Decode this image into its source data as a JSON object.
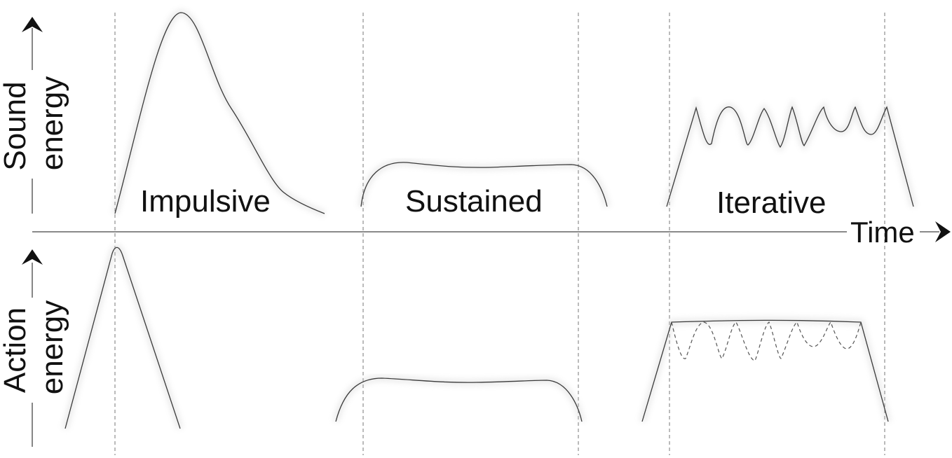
{
  "axes": {
    "top_y_label_line1": "Sound",
    "top_y_label_line2": "energy",
    "bottom_y_label_line1": "Action",
    "bottom_y_label_line2": "energy",
    "x_label": "Time"
  },
  "categories": {
    "impulsive": "Impulsive",
    "sustained": "Sustained",
    "iterative": "Iterative"
  }
}
